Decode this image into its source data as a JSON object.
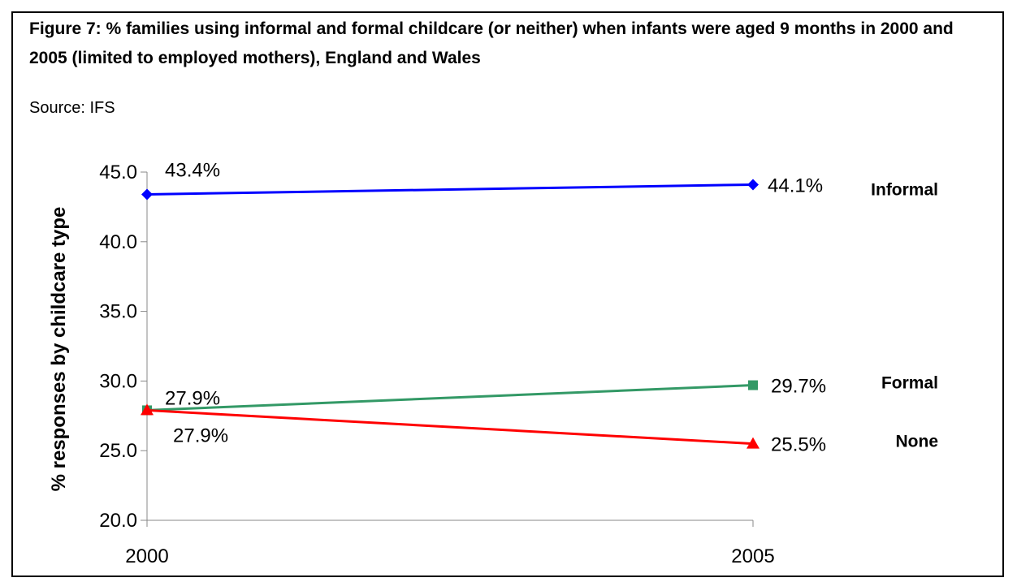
{
  "figure": {
    "title": "Figure 7: % families using informal and formal childcare (or neither) when infants were aged 9 months in 2000 and 2005 (limited to employed mothers), England and Wales",
    "source": "Source: IFS"
  },
  "chart_data": {
    "type": "line",
    "title": "Figure 7: % families using informal and formal childcare (or neither) when infants were aged 9 months in 2000 and 2005 (limited to employed mothers), England and Wales",
    "xlabel": "",
    "ylabel": "% responses by childcare type",
    "categories": [
      "2000",
      "2005"
    ],
    "ylim": [
      20.0,
      45.0
    ],
    "yticks": [
      "20.0",
      "25.0",
      "30.0",
      "35.0",
      "40.0",
      "45.0"
    ],
    "grid": false,
    "series": [
      {
        "name": "Informal",
        "values": [
          43.4,
          44.1
        ],
        "labels": [
          "43.4%",
          "44.1%"
        ],
        "color": "#0000ff",
        "marker": "diamond"
      },
      {
        "name": "Formal",
        "values": [
          27.9,
          29.7
        ],
        "labels": [
          "27.9%",
          "29.7%"
        ],
        "color": "#339966",
        "marker": "square"
      },
      {
        "name": "None",
        "values": [
          27.9,
          25.5
        ],
        "labels": [
          "27.9%",
          "25.5%"
        ],
        "color": "#ff0000",
        "marker": "triangle"
      }
    ]
  }
}
